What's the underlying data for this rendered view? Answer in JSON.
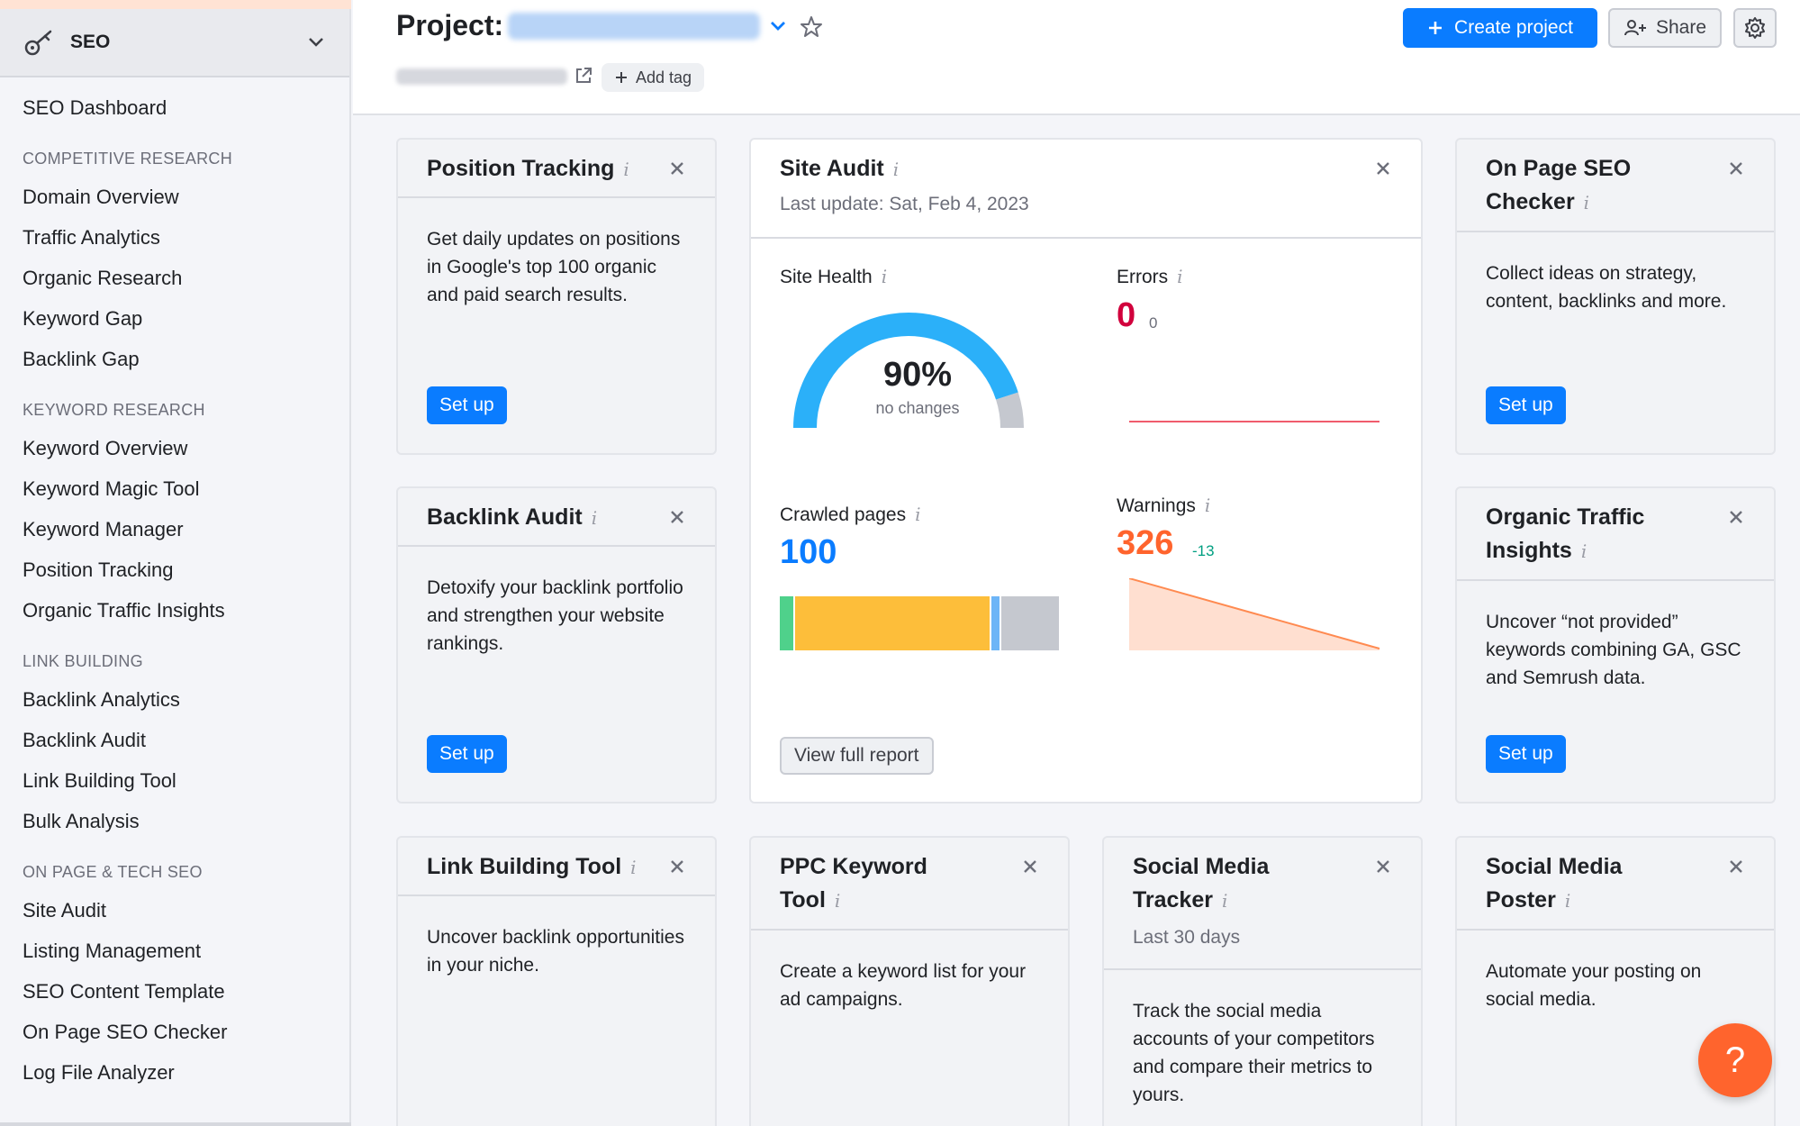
{
  "sidebar": {
    "module_label": "SEO",
    "items": [
      {
        "type": "item",
        "label": "SEO Dashboard"
      },
      {
        "type": "section",
        "label": "COMPETITIVE RESEARCH"
      },
      {
        "type": "item",
        "label": "Domain Overview"
      },
      {
        "type": "item",
        "label": "Traffic Analytics"
      },
      {
        "type": "item",
        "label": "Organic Research"
      },
      {
        "type": "item",
        "label": "Keyword Gap"
      },
      {
        "type": "item",
        "label": "Backlink Gap"
      },
      {
        "type": "section",
        "label": "KEYWORD RESEARCH"
      },
      {
        "type": "item",
        "label": "Keyword Overview"
      },
      {
        "type": "item",
        "label": "Keyword Magic Tool"
      },
      {
        "type": "item",
        "label": "Keyword Manager"
      },
      {
        "type": "item",
        "label": "Position Tracking"
      },
      {
        "type": "item",
        "label": "Organic Traffic Insights"
      },
      {
        "type": "section",
        "label": "LINK BUILDING"
      },
      {
        "type": "item",
        "label": "Backlink Analytics"
      },
      {
        "type": "item",
        "label": "Backlink Audit"
      },
      {
        "type": "item",
        "label": "Link Building Tool"
      },
      {
        "type": "item",
        "label": "Bulk Analysis"
      },
      {
        "type": "section",
        "label": "ON PAGE & TECH SEO"
      },
      {
        "type": "item",
        "label": "Site Audit"
      },
      {
        "type": "item",
        "label": "Listing Management"
      },
      {
        "type": "item",
        "label": "SEO Content Template"
      },
      {
        "type": "item",
        "label": "On Page SEO Checker"
      },
      {
        "type": "item",
        "label": "Log File Analyzer"
      }
    ]
  },
  "header": {
    "project_label": "Project:",
    "add_tag_label": "Add tag",
    "create_project_label": "Create project",
    "share_label": "Share"
  },
  "cards": {
    "position_tracking": {
      "title": "Position Tracking",
      "info": "i",
      "body": "Get daily updates on positions in Google's top 100 organic and paid search results.",
      "button": "Set up"
    },
    "backlink_audit": {
      "title": "Backlink Audit",
      "info": "i",
      "body": "Detoxify your backlink portfolio and strengthen your website rankings.",
      "button": "Set up"
    },
    "link_building_tool": {
      "title": "Link Building Tool",
      "info": "i",
      "body": "Uncover backlink opportunities in your niche."
    },
    "on_page_seo": {
      "title_line1": "On Page SEO",
      "title_line2": "Checker",
      "info": "i",
      "body": "Collect ideas on strategy, content, backlinks and more.",
      "button": "Set up"
    },
    "organic_traffic": {
      "title_line1": "Organic Traffic",
      "title_line2": "Insights",
      "info": "i",
      "body": "Uncover “not provided” keywords combining GA, GSC and Semrush data.",
      "button": "Set up"
    },
    "ppc_keyword": {
      "title_line1": "PPC Keyword",
      "title_line2": "Tool",
      "info": "i",
      "body": "Create a keyword list for your ad campaigns."
    },
    "social_tracker": {
      "title_line1": "Social Media",
      "title_line2": "Tracker",
      "info": "i",
      "subtitle": "Last 30 days",
      "body": "Track the social media accounts of your competitors and compare their metrics to yours."
    },
    "social_poster": {
      "title_line1": "Social Media",
      "title_line2": "Poster",
      "info": "i",
      "body": "Automate your posting on social media."
    }
  },
  "site_audit": {
    "title": "Site Audit",
    "info": "i",
    "last_update": "Last update: Sat, Feb 4, 2023",
    "site_health_label": "Site Health",
    "site_health_value": "90%",
    "site_health_fraction": 0.9,
    "site_health_sub": "no changes",
    "errors_label": "Errors",
    "errors_value": "0",
    "errors_delta": "0",
    "crawled_label": "Crawled pages",
    "crawled_value": "100",
    "crawled_segments": [
      {
        "share": 0.05,
        "color": "#4fd18b"
      },
      {
        "share": 0.71,
        "color": "#fdbe3a"
      },
      {
        "share": 0.03,
        "color": "#6db5f7"
      },
      {
        "share": 0.21,
        "color": "#c5c8cf"
      }
    ],
    "warnings_label": "Warnings",
    "warnings_value": "326",
    "warnings_delta": "-13",
    "view_report_label": "View full report"
  },
  "help_label": "?",
  "colors": {
    "accent": "#0a7cff",
    "error": "#d1003c",
    "warning": "#ff642d",
    "positive_delta": "#009f81",
    "help": "#ff642d",
    "gauge": "#2bb0f9"
  }
}
